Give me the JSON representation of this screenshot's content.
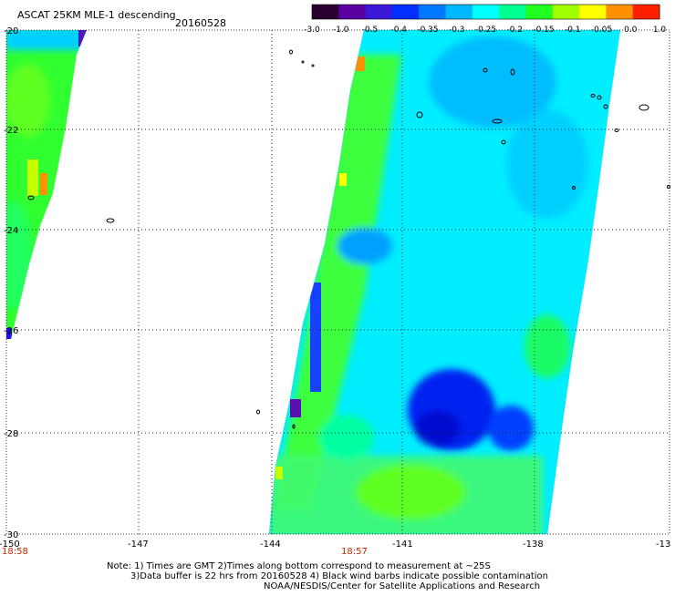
{
  "header": {
    "title": "ASCAT 25KM MLE-1 descending",
    "date": "20160528"
  },
  "colorbar": {
    "labels": [
      "-3.0",
      "-1.0",
      "-0.5",
      "-0.4",
      "-0.35",
      "-0.3",
      "-0.25",
      "-0.2",
      "-0.15",
      "-0.1",
      "-0.05",
      "0.0",
      "1.0"
    ],
    "colors": [
      "#2a0030",
      "#5a00a0",
      "#3a18d8",
      "#0030ff",
      "#0078ff",
      "#00b8ff",
      "#00ffff",
      "#00ff90",
      "#20ff20",
      "#a0ff00",
      "#ffff00",
      "#ff9000",
      "#ff2000"
    ]
  },
  "axes": {
    "lon_labels": [
      "-150",
      "-147",
      "-144",
      "-141",
      "-138",
      "-13"
    ],
    "lat_labels": [
      "-20",
      "-22",
      "-24",
      "-26",
      "-28",
      "-30"
    ]
  },
  "times": {
    "left": "18:58",
    "center": "18:57",
    "color": "#cc2200"
  },
  "notes": {
    "line1": "Note: 1) Times are GMT 2)Times along bottom correspond to measurement at ~25S",
    "line2": "3)Data buffer is 22 hrs from 20160528 4) Black wind barbs indicate possible contamination",
    "line3": "NOAA/NESDIS/Center for Satellite Applications and Research"
  }
}
